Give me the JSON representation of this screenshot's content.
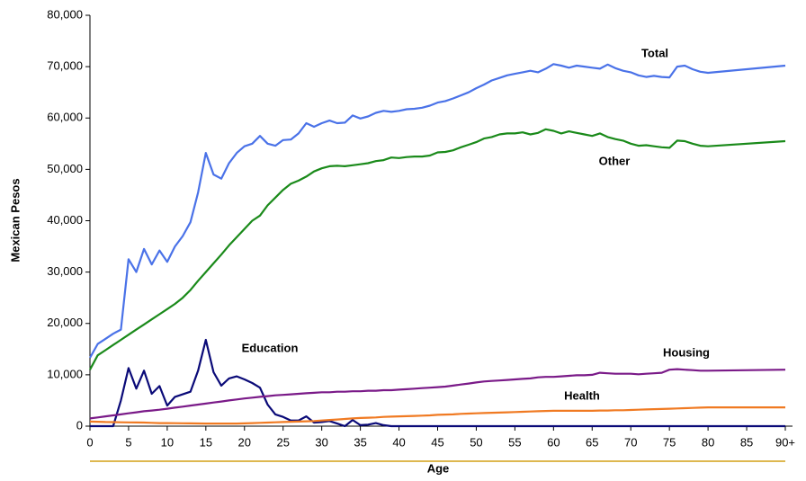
{
  "chart_data": {
    "type": "line",
    "xlabel": "Age",
    "ylabel": "Mexican Pesos",
    "x": [
      0,
      1,
      2,
      3,
      4,
      5,
      6,
      7,
      8,
      9,
      10,
      11,
      12,
      13,
      14,
      15,
      16,
      17,
      18,
      19,
      20,
      21,
      22,
      23,
      24,
      25,
      26,
      27,
      28,
      29,
      30,
      31,
      32,
      33,
      34,
      35,
      36,
      37,
      38,
      39,
      40,
      41,
      42,
      43,
      44,
      45,
      46,
      47,
      48,
      49,
      50,
      51,
      52,
      53,
      54,
      55,
      56,
      57,
      58,
      59,
      60,
      61,
      62,
      63,
      64,
      65,
      66,
      67,
      68,
      69,
      70,
      71,
      72,
      73,
      74,
      75,
      76,
      77,
      78,
      79,
      80,
      90
    ],
    "xlim": [
      0,
      90
    ],
    "xticks": [
      0,
      5,
      10,
      15,
      20,
      25,
      30,
      35,
      40,
      45,
      50,
      55,
      60,
      65,
      70,
      75,
      80,
      85,
      {
        "value": 90,
        "label": "90+"
      }
    ],
    "ylim": [
      0,
      80000
    ],
    "yticks": [
      0,
      {
        "value": 10000,
        "label": "10,000"
      },
      {
        "value": 20000,
        "label": "20,000"
      },
      {
        "value": 30000,
        "label": "30,000"
      },
      {
        "value": 40000,
        "label": "40,000"
      },
      {
        "value": 50000,
        "label": "50,000"
      },
      {
        "value": 60000,
        "label": "60,000"
      },
      {
        "value": 70000,
        "label": "70,000"
      },
      {
        "value": 80000,
        "label": "80,000"
      }
    ],
    "grid": false,
    "series": [
      {
        "name": "Total",
        "color": "#4a72e8",
        "values": [
          13300,
          16000,
          17000,
          18000,
          18800,
          32500,
          30000,
          34500,
          31500,
          34200,
          32000,
          35000,
          37000,
          39700,
          45500,
          53200,
          49000,
          48200,
          51200,
          53200,
          54500,
          55000,
          56500,
          55000,
          54600,
          55700,
          55800,
          57000,
          59000,
          58300,
          59000,
          59500,
          59000,
          59100,
          60500,
          59900,
          60300,
          61000,
          61400,
          61200,
          61400,
          61700,
          61800,
          62000,
          62400,
          63000,
          63300,
          63800,
          64400,
          65000,
          65800,
          66500,
          67300,
          67800,
          68300,
          68600,
          68900,
          69200,
          68900,
          69600,
          70500,
          70200,
          69800,
          70200,
          70000,
          69800,
          69600,
          70400,
          69700,
          69200,
          68900,
          68300,
          68000,
          68200,
          68000,
          67900,
          70000,
          70200,
          69500,
          69000,
          68800,
          70200
        ]
      },
      {
        "name": "Other",
        "color": "#1a8a1a",
        "values": [
          11000,
          13800,
          14800,
          15800,
          16800,
          17800,
          18800,
          19800,
          20800,
          21800,
          22800,
          23800,
          25000,
          26500,
          28300,
          30000,
          31700,
          33400,
          35200,
          36800,
          38400,
          40000,
          41000,
          43000,
          44500,
          46000,
          47200,
          47800,
          48600,
          49600,
          50200,
          50600,
          50700,
          50600,
          50800,
          51000,
          51200,
          51600,
          51800,
          52300,
          52200,
          52400,
          52500,
          52500,
          52700,
          53300,
          53400,
          53700,
          54300,
          54800,
          55300,
          56000,
          56300,
          56800,
          57000,
          57000,
          57200,
          56800,
          57100,
          57800,
          57500,
          57000,
          57400,
          57100,
          56800,
          56500,
          57000,
          56300,
          55900,
          55600,
          55000,
          54600,
          54700,
          54500,
          54300,
          54200,
          55600,
          55500,
          55000,
          54600,
          54500,
          55500
        ]
      },
      {
        "name": "Education",
        "color": "#0a0a78",
        "values": [
          0,
          0,
          0,
          0,
          5000,
          11300,
          7300,
          10800,
          6300,
          7800,
          4000,
          5700,
          6200,
          6700,
          10800,
          16800,
          10500,
          7900,
          9300,
          9700,
          9100,
          8400,
          7500,
          4200,
          2300,
          1800,
          1100,
          1100,
          1900,
          700,
          800,
          1000,
          500,
          0,
          1200,
          200,
          300,
          600,
          200,
          0,
          0,
          0,
          0,
          0,
          0,
          0,
          0,
          0,
          0,
          0,
          0,
          0,
          0,
          0,
          0,
          0,
          0,
          0,
          0,
          0,
          0,
          0,
          0,
          0,
          0,
          0,
          0,
          0,
          0,
          0,
          0,
          0,
          0,
          0,
          0,
          0,
          0,
          0,
          0,
          0,
          0,
          0
        ]
      },
      {
        "name": "Housing",
        "color": "#7a1a88",
        "values": [
          1500,
          1700,
          1900,
          2100,
          2300,
          2500,
          2700,
          2900,
          3050,
          3200,
          3400,
          3600,
          3800,
          4000,
          4200,
          4400,
          4600,
          4800,
          5000,
          5200,
          5400,
          5550,
          5700,
          5850,
          6000,
          6100,
          6200,
          6300,
          6400,
          6500,
          6600,
          6600,
          6700,
          6700,
          6800,
          6800,
          6900,
          6900,
          7000,
          7000,
          7100,
          7200,
          7300,
          7400,
          7500,
          7600,
          7700,
          7900,
          8100,
          8300,
          8500,
          8700,
          8800,
          8900,
          9000,
          9100,
          9200,
          9300,
          9500,
          9600,
          9600,
          9700,
          9800,
          9900,
          9900,
          10000,
          10400,
          10300,
          10200,
          10200,
          10200,
          10100,
          10200,
          10300,
          10400,
          11000,
          11100,
          11000,
          10900,
          10800,
          10800,
          11000
        ]
      },
      {
        "name": "Health",
        "color": "#f07a22",
        "values": [
          900,
          850,
          800,
          780,
          760,
          740,
          720,
          700,
          650,
          600,
          600,
          580,
          560,
          540,
          520,
          500,
          500,
          500,
          500,
          500,
          550,
          600,
          650,
          700,
          750,
          800,
          850,
          900,
          950,
          1000,
          1100,
          1200,
          1300,
          1400,
          1500,
          1600,
          1650,
          1700,
          1800,
          1850,
          1900,
          1950,
          2000,
          2050,
          2100,
          2200,
          2250,
          2300,
          2400,
          2450,
          2500,
          2550,
          2600,
          2650,
          2700,
          2750,
          2800,
          2850,
          2900,
          2950,
          3000,
          3000,
          3000,
          3000,
          3000,
          3000,
          3050,
          3050,
          3100,
          3100,
          3150,
          3200,
          3250,
          3300,
          3350,
          3400,
          3450,
          3500,
          3550,
          3600,
          3650,
          3650
        ]
      }
    ]
  }
}
